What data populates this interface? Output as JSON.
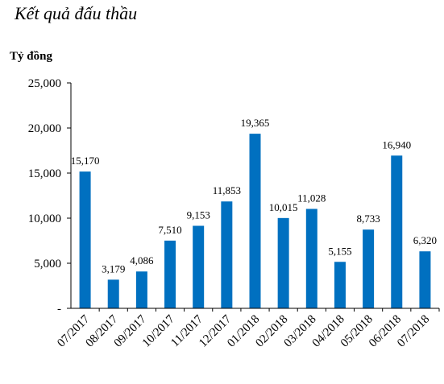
{
  "header": {
    "title": "Kết quả đấu thầu"
  },
  "chart_data": {
    "type": "bar",
    "title": "Kết quả đấu thầu",
    "ylabel": "Tỷ đồng",
    "xlabel": "",
    "categories": [
      "07/2017",
      "08/2017",
      "09/2017",
      "10/2017",
      "11/2017",
      "12/2017",
      "01/2018",
      "02/2018",
      "03/2018",
      "04/2018",
      "05/2018",
      "06/2018",
      "07/2018"
    ],
    "values": [
      15170,
      3179,
      4086,
      7510,
      9153,
      11853,
      19365,
      10015,
      11028,
      5155,
      8733,
      16940,
      6320
    ],
    "value_labels": [
      "15,170",
      "3,179",
      "4,086",
      "7,510",
      "9,153",
      "11,853",
      "19,365",
      "10,015",
      "11,028",
      "5,155",
      "8,733",
      "16,940",
      "6,320"
    ],
    "ylim": [
      0,
      25000
    ],
    "y_ticks": [
      0,
      5000,
      10000,
      15000,
      20000,
      25000
    ],
    "y_tick_labels": [
      "-",
      "5,000",
      "10,000",
      "15,000",
      "20,000",
      "25,000"
    ],
    "bar_color": "#0070c0",
    "grid": false,
    "legend": "none"
  }
}
